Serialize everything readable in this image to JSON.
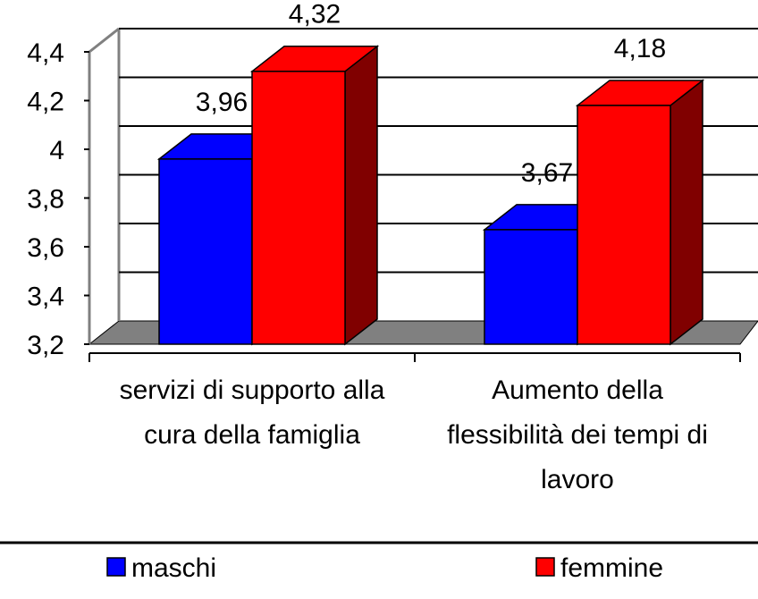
{
  "chart_data": {
    "type": "bar3d",
    "categories": [
      "servizi di supporto alla cura della famiglia",
      "Aumento della flessibilità dei tempi di lavoro"
    ],
    "series": [
      {
        "name": "maschi",
        "color": "#0000ff",
        "values": [
          3.96,
          3.67
        ],
        "value_labels": [
          "3,96",
          "3,67"
        ]
      },
      {
        "name": "femmine",
        "color": "#ff0000",
        "values": [
          4.32,
          4.18
        ],
        "value_labels": [
          "4,32",
          "4,18"
        ]
      }
    ],
    "ylim": [
      3.2,
      4.4
    ],
    "yticks": [
      {
        "value": 3.2,
        "label": "3,2"
      },
      {
        "value": 3.4,
        "label": "3,4"
      },
      {
        "value": 3.6,
        "label": "3,6"
      },
      {
        "value": 3.8,
        "label": "3,8"
      },
      4,
      {
        "value": 4.2,
        "label": "4,2"
      },
      {
        "value": 4.4,
        "label": "4,4"
      }
    ],
    "grid": true,
    "legend": "bottom"
  }
}
